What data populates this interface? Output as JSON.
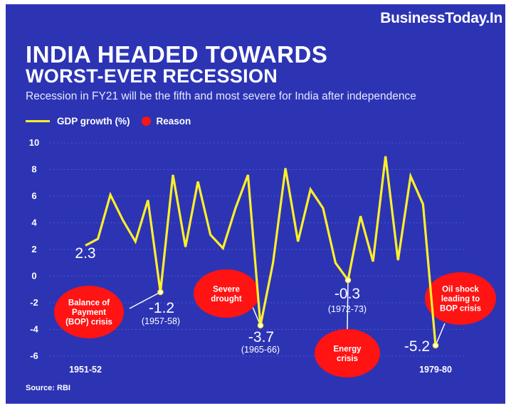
{
  "brand": "BusinessToday.In",
  "title_line1": "INDIA HEADED TOWARDS",
  "title_line2": "WORST-EVER RECESSION",
  "subtitle": "Recession in FY21 will be the fifth and most severe for India after independence",
  "source": "Source: RBI",
  "colors": {
    "background": "#2c34b4",
    "line": "#ffef2a",
    "reason": "#ff1313",
    "text": "#ffffff"
  },
  "chart_data": {
    "type": "line",
    "series": [
      {
        "name": "GDP growth (%)",
        "values": [
          2.3,
          2.8,
          6.1,
          4.2,
          2.6,
          5.7,
          -1.2,
          7.6,
          2.2,
          7.1,
          3.1,
          2.1,
          5.1,
          7.6,
          -3.7,
          1.0,
          8.1,
          2.6,
          6.5,
          5.1,
          1.0,
          -0.3,
          4.5,
          1.1,
          9.0,
          1.2,
          7.5,
          5.4,
          -5.2
        ]
      }
    ],
    "x_labels": [
      "1951-52",
      "1979-80"
    ],
    "ylim": [
      -6,
      10
    ],
    "yticks": [
      -6,
      -4,
      -2,
      0,
      2,
      4,
      6,
      8,
      10
    ],
    "legend": [
      "GDP growth (%)",
      "Reason"
    ],
    "legend_position": "top-left",
    "grid": true,
    "annotations": [
      {
        "index": 0,
        "value": "2.3",
        "year": "",
        "reason": ""
      },
      {
        "index": 6,
        "value": "-1.2",
        "year": "(1957-58)",
        "reason": "Balance of Payment (BOP) crisis",
        "reason_lines": [
          "Balance of",
          "Payment",
          "(BOP) crisis"
        ]
      },
      {
        "index": 14,
        "value": "-3.7",
        "year": "(1965-66)",
        "reason": "Severe drought",
        "reason_lines": [
          "Severe",
          "drought"
        ]
      },
      {
        "index": 21,
        "value": "-0.3",
        "year": "(1972-73)",
        "reason": "Energy crisis",
        "reason_lines": [
          "Energy",
          "crisis"
        ]
      },
      {
        "index": 28,
        "value": "-5.2",
        "year": "",
        "reason": "Oil shock leading to BOP crisis",
        "reason_lines": [
          "Oil shock",
          "leading to",
          "BOP crisis"
        ]
      }
    ]
  }
}
